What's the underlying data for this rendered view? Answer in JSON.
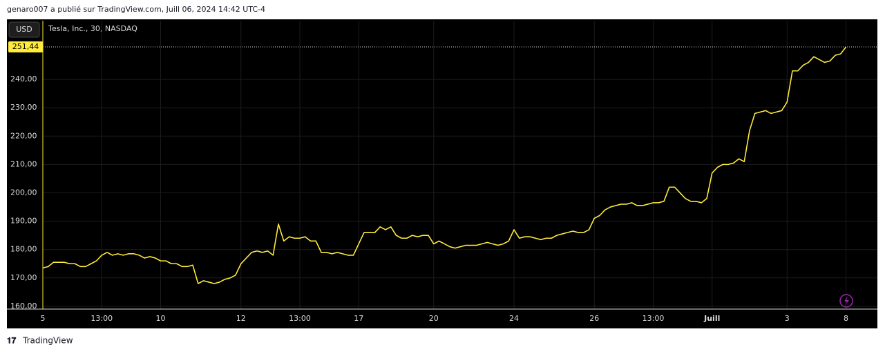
{
  "chart_data": {
    "type": "line",
    "header": "genaro007 a publié sur TradingView.com, Juill 06, 2024 14:42 UTC-4",
    "currency": "USD",
    "title": "Tesla, Inc., 30, NASDAQ",
    "brand": "TradingView",
    "price_label": "251,44",
    "color": "#ffeb3b",
    "grid": true,
    "categories": [
      "5",
      null,
      null,
      null,
      null,
      null,
      null,
      null,
      null,
      null,
      null,
      "13:00",
      null,
      null,
      null,
      null,
      null,
      null,
      null,
      null,
      null,
      null,
      "10",
      null,
      null,
      null,
      null,
      null,
      null,
      null,
      null,
      null,
      null,
      null,
      null,
      null,
      null,
      "12",
      null,
      null,
      null,
      null,
      null,
      null,
      null,
      null,
      null,
      null,
      "13:00",
      null,
      null,
      null,
      null,
      null,
      null,
      null,
      null,
      null,
      null,
      "17",
      null,
      null,
      null,
      null,
      null,
      null,
      null,
      null,
      null,
      null,
      null,
      null,
      null,
      "20",
      null,
      null,
      null,
      null,
      null,
      null,
      null,
      null,
      null,
      null,
      null,
      null,
      null,
      null,
      "24",
      null,
      null,
      null,
      null,
      null,
      null,
      null,
      null,
      null,
      null,
      null,
      null,
      null,
      null,
      "26",
      null,
      null,
      null,
      null,
      null,
      null,
      null,
      null,
      null,
      null,
      "13:00",
      null,
      null,
      null,
      null,
      null,
      null,
      null,
      null,
      null,
      null,
      "Juill",
      null,
      null,
      null,
      null,
      null,
      null,
      null,
      null,
      null,
      null,
      null,
      null,
      null,
      "3",
      null,
      null,
      null,
      null,
      null,
      null,
      null,
      null,
      null,
      null,
      "8"
    ],
    "values": [
      173.5,
      174,
      175.5,
      175.5,
      175.5,
      175,
      175,
      174,
      174,
      175,
      176,
      178,
      179,
      178,
      178.5,
      178,
      178.5,
      178.5,
      178,
      177,
      177.5,
      177,
      176,
      176,
      175,
      175,
      174,
      174,
      174.5,
      168,
      169,
      168.5,
      168,
      168.5,
      169.5,
      170,
      171,
      175,
      177,
      179,
      179.5,
      179,
      179.5,
      178,
      189,
      183,
      184.5,
      184,
      184,
      184.5,
      183,
      183,
      179,
      179,
      178.5,
      179,
      178.5,
      178,
      178,
      182,
      186,
      186,
      186,
      188,
      187,
      188,
      185,
      184,
      184,
      185,
      184.5,
      185,
      185,
      182,
      183,
      182,
      181,
      180.5,
      181,
      181.5,
      181.5,
      181.5,
      182,
      182.5,
      182,
      181.5,
      182,
      183,
      187,
      184,
      184.5,
      184.5,
      184,
      183.5,
      184,
      184,
      185,
      185.5,
      186,
      186.5,
      186,
      186,
      187,
      191,
      192,
      194,
      195,
      195.5,
      196,
      196,
      196.5,
      195.5,
      195.5,
      196,
      196.5,
      196.5,
      197,
      202,
      202,
      200,
      198,
      197,
      197,
      196.5,
      198,
      207,
      209,
      210,
      210,
      210.5,
      212,
      211,
      222,
      228,
      228.5,
      229,
      228,
      228.5,
      229,
      232,
      243,
      243,
      245,
      246,
      248,
      247,
      246,
      246.5,
      248.5,
      249,
      251.44
    ],
    "ylim": [
      159.0,
      260.7
    ],
    "yticks": [
      {
        "value": 160,
        "label": "160,00"
      },
      {
        "value": 170,
        "label": "170,00"
      },
      {
        "value": 180,
        "label": "180,00"
      },
      {
        "value": 190,
        "label": "190,00"
      },
      {
        "value": 200,
        "label": "200,00"
      },
      {
        "value": 210,
        "label": "210,00"
      },
      {
        "value": 220,
        "label": "220,00"
      },
      {
        "value": 230,
        "label": "230,00"
      },
      {
        "value": 240,
        "label": "240,00"
      }
    ]
  }
}
